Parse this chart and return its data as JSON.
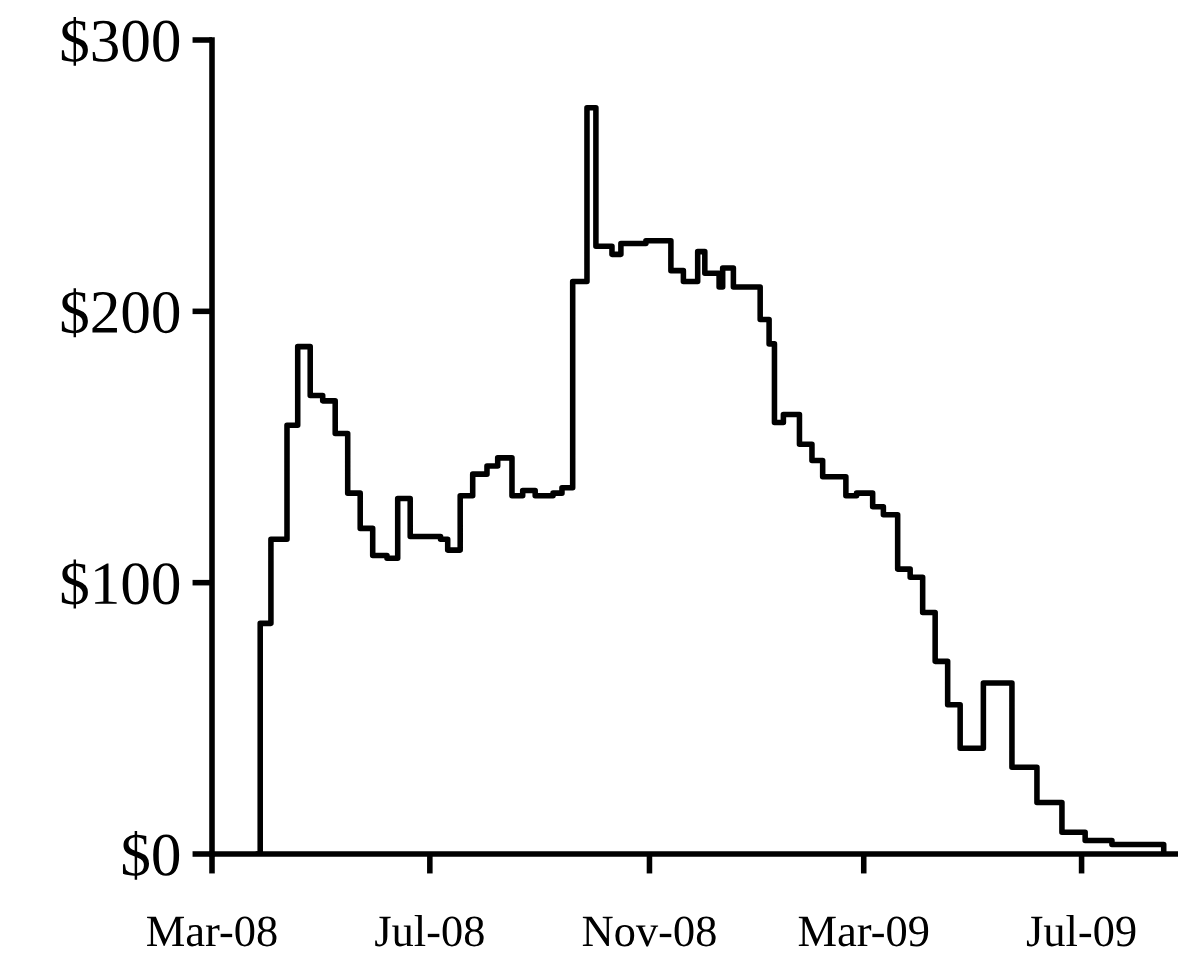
{
  "chart_data": {
    "type": "step",
    "xlim": [
      "2008-03-01",
      "2009-08-24"
    ],
    "xticks": [
      {
        "value": "2008-03-01",
        "label": "Mar-08"
      },
      {
        "value": "2008-07-01",
        "label": "Jul-08"
      },
      {
        "value": "2008-11-01",
        "label": "Nov-08"
      },
      {
        "value": "2009-03-01",
        "label": "Mar-09"
      },
      {
        "value": "2009-07-01",
        "label": "Jul-09"
      }
    ],
    "ylim": [
      0,
      300
    ],
    "yticks": [
      {
        "value": 0,
        "label": "$0"
      },
      {
        "value": 100,
        "label": "$100"
      },
      {
        "value": 200,
        "label": "$200"
      },
      {
        "value": 300,
        "label": "$300"
      }
    ],
    "marker": "none",
    "line_style": "solid",
    "series": [
      {
        "color": "#000000",
        "x": [
          "2008-03-27",
          "2008-03-28",
          "2008-04-03",
          "2008-04-12",
          "2008-04-18",
          "2008-04-25",
          "2008-05-02",
          "2008-05-09",
          "2008-05-16",
          "2008-05-23",
          "2008-05-30",
          "2008-06-07",
          "2008-06-13",
          "2008-06-20",
          "2008-07-07",
          "2008-07-11",
          "2008-07-18",
          "2008-07-25",
          "2008-08-02",
          "2008-08-08",
          "2008-08-16",
          "2008-08-22",
          "2008-08-29",
          "2008-09-08",
          "2008-09-13",
          "2008-09-19",
          "2008-09-27",
          "2008-10-02",
          "2008-10-11",
          "2008-10-16",
          "2008-10-30",
          "2008-11-13",
          "2008-11-20",
          "2008-11-28",
          "2008-12-02",
          "2008-12-10",
          "2008-12-12",
          "2008-12-18",
          "2009-01-02",
          "2009-01-07",
          "2009-01-10",
          "2009-01-15",
          "2009-01-24",
          "2009-01-31",
          "2009-02-06",
          "2009-02-19",
          "2009-02-25",
          "2009-03-06",
          "2009-03-12",
          "2009-03-20",
          "2009-03-27",
          "2009-04-03",
          "2009-04-10",
          "2009-04-17",
          "2009-04-24",
          "2009-05-07",
          "2009-05-23",
          "2009-06-06",
          "2009-06-20",
          "2009-07-03",
          "2009-07-18",
          "2009-08-16"
        ],
        "values": [
          0,
          85,
          116,
          158,
          187,
          169,
          167,
          155,
          133,
          120,
          110,
          109,
          131,
          117,
          116,
          112,
          132,
          140,
          143,
          146,
          132,
          134,
          132,
          133,
          135,
          211,
          275,
          224,
          221,
          225,
          226,
          215,
          211,
          222,
          214,
          209,
          216,
          209,
          197,
          188,
          159,
          162,
          151,
          145,
          139,
          132,
          133,
          128,
          125,
          105,
          102,
          89,
          71,
          55,
          39,
          63,
          32,
          19,
          8,
          5,
          3.5,
          0
        ]
      }
    ]
  }
}
